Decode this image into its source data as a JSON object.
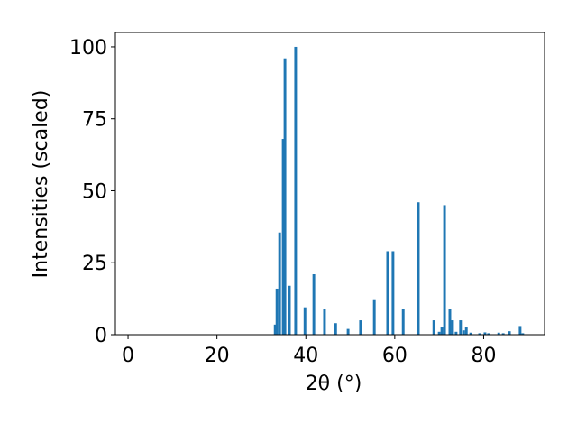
{
  "chart_data": {
    "type": "bar",
    "xlabel": "2θ (°)",
    "ylabel": "Intensities (scaled)",
    "x": [
      33.1,
      33.5,
      34.1,
      34.9,
      35.3,
      36.3,
      37.7,
      39.8,
      41.8,
      44.2,
      46.7,
      49.5,
      52.3,
      55.4,
      58.4,
      59.6,
      61.9,
      65.3,
      68.8,
      70.0,
      70.6,
      71.2,
      72.4,
      73.0,
      73.8,
      74.8,
      75.5,
      76.1,
      77.1,
      79.1,
      80.3,
      81.1,
      83.4,
      84.4,
      85.8,
      88.2,
      88.8
    ],
    "values": [
      3.5,
      16,
      35.5,
      68,
      96,
      17,
      100,
      9.5,
      21,
      9,
      4,
      2,
      5,
      12,
      29,
      29,
      9,
      46,
      5,
      1,
      2.5,
      45,
      9,
      5,
      1,
      5,
      1.5,
      2.5,
      0.7,
      0.5,
      0.8,
      0.5,
      0.7,
      0.5,
      1.2,
      3,
      0.5
    ],
    "color": "#1f77b4",
    "xlim": [
      -2.85,
      93.7
    ],
    "xticks": [
      0,
      20,
      40,
      60,
      80
    ],
    "ylim": [
      0,
      105
    ],
    "yticks": [
      0,
      25,
      50,
      75,
      100
    ]
  }
}
